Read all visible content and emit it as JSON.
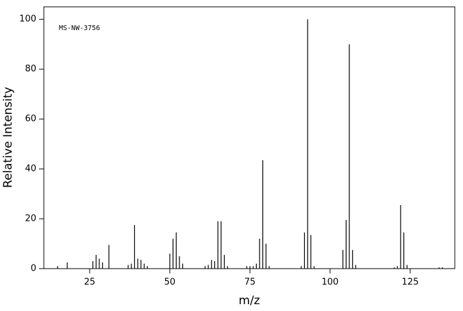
{
  "chart_data": {
    "type": "stem",
    "annotation": "MS-NW-3756",
    "x_label": "m/z",
    "y_label": "Relative Intensity",
    "color": "#000000",
    "x": [
      15,
      18,
      26,
      27,
      28,
      29,
      31,
      37,
      38,
      39,
      40,
      41,
      42,
      43,
      50,
      51,
      52,
      53,
      54,
      61,
      62,
      63,
      64,
      65,
      66,
      67,
      68,
      74,
      75,
      76,
      77,
      78,
      79,
      80,
      81,
      91,
      92,
      93,
      94,
      95,
      104,
      105,
      106,
      107,
      108,
      120,
      121,
      122,
      123,
      124,
      134,
      135
    ],
    "values": [
      1,
      2.5,
      3,
      5.5,
      4,
      2.5,
      9.5,
      1.5,
      2,
      17.5,
      4,
      3.5,
      2,
      1,
      6,
      12,
      14.5,
      5,
      2,
      1,
      1.5,
      3.5,
      3,
      19,
      19,
      5.5,
      1,
      1,
      1,
      1,
      2,
      12,
      43.5,
      10,
      1,
      1,
      14.5,
      100,
      13.5,
      1,
      7.5,
      19.5,
      90,
      7.5,
      1.5,
      0.5,
      1,
      25.5,
      14.5,
      1.5,
      0.5,
      0.5
    ],
    "xlim": [
      10.7,
      138.9
    ],
    "ylim": [
      0,
      105
    ],
    "xticks": [
      25,
      50,
      75,
      100,
      125
    ],
    "yticks": [
      0,
      20,
      40,
      60,
      80,
      100
    ]
  }
}
